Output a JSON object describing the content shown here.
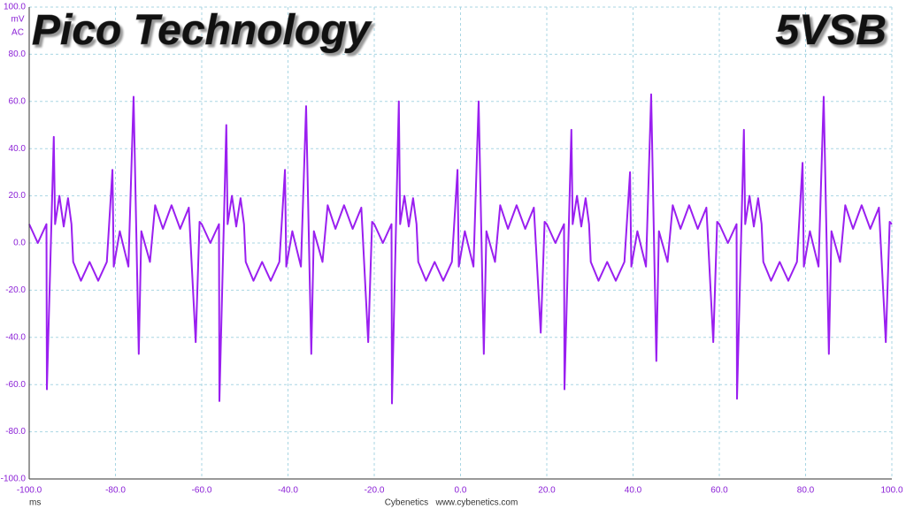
{
  "chart_data": {
    "type": "line",
    "title": "Pico Technology",
    "subtitle": "5VSB",
    "ylabel": "mV",
    "coupling": "AC",
    "xlabel": "ms",
    "footer": "Cybenetics   www.cybenetics.com",
    "color": "#9a1ff0",
    "grid": true,
    "xlim": [
      -100,
      100
    ],
    "xticks": [
      {
        "value": -100,
        "label": "-100.0"
      },
      {
        "value": -80,
        "label": "-80.0"
      },
      {
        "value": -60,
        "label": "-60.0"
      },
      {
        "value": -40,
        "label": "-40.0"
      },
      {
        "value": -20,
        "label": "-20.0"
      },
      {
        "value": 0,
        "label": "0.0"
      },
      {
        "value": 20,
        "label": "20.0"
      },
      {
        "value": 40,
        "label": "40.0"
      },
      {
        "value": 60,
        "label": "60.0"
      },
      {
        "value": 80,
        "label": "80.0"
      },
      {
        "value": 100,
        "label": "100.0"
      }
    ],
    "ylim": [
      -100,
      100
    ],
    "yticks": [
      {
        "value": -100,
        "label": "-100.0"
      },
      {
        "value": -80,
        "label": "-80.0"
      },
      {
        "value": -60,
        "label": "-60.0"
      },
      {
        "value": -40,
        "label": "-40.0"
      },
      {
        "value": -20,
        "label": "-20.0"
      },
      {
        "value": 0,
        "label": "0.0"
      },
      {
        "value": 20,
        "label": "20.0"
      },
      {
        "value": 40,
        "label": "40.0"
      },
      {
        "value": 60,
        "label": "60.0"
      },
      {
        "value": 80,
        "label": "80.0"
      },
      {
        "value": 100,
        "label": "100.0"
      }
    ],
    "x": [
      -100,
      -98,
      -96,
      -95.9,
      -94.3,
      -94,
      -93,
      -92,
      -91,
      -90.2,
      -89.8,
      -88,
      -86,
      -84,
      -82,
      -80.7,
      -80.4,
      -79,
      -77,
      -75.8,
      -74.6,
      -74,
      -72,
      -70.8,
      -69,
      -67,
      -65,
      -63,
      -61.4,
      -60.5,
      -60,
      -58,
      -56,
      -55.9,
      -54.3,
      -54,
      -53,
      -52,
      -51,
      -50.2,
      -49.8,
      -48,
      -46,
      -44,
      -42,
      -40.7,
      -40.4,
      -39,
      -37,
      -35.8,
      -34.6,
      -34,
      -32,
      -30.8,
      -29,
      -27,
      -25,
      -23,
      -21.4,
      -20.5,
      -20,
      -18,
      -16,
      -15.9,
      -14.3,
      -14,
      -13,
      -12,
      -11,
      -10.2,
      -9.8,
      -8,
      -6,
      -4,
      -2,
      -0.7,
      -0.4,
      1,
      3,
      4.2,
      5.4,
      6,
      8,
      9.2,
      11,
      13,
      15,
      17,
      18.6,
      19.5,
      20,
      22,
      24,
      24.1,
      25.7,
      26,
      27,
      28,
      29,
      29.8,
      30.2,
      32,
      34,
      36,
      38,
      39.3,
      39.6,
      41,
      43,
      44.2,
      45.4,
      46,
      48,
      49.2,
      51,
      53,
      55,
      57,
      58.6,
      59.5,
      60,
      62,
      64,
      64.1,
      65.7,
      66,
      67,
      68,
      69,
      69.8,
      70.2,
      72,
      74,
      76,
      78,
      79.3,
      79.6,
      81,
      83,
      84.2,
      85.4,
      86,
      88,
      89.2,
      91,
      93,
      95,
      97,
      98.6,
      99.5,
      100
    ],
    "values": [
      8,
      0,
      8,
      -62,
      45,
      8,
      20,
      7,
      19,
      8,
      -8,
      -16,
      -8,
      -16,
      -8,
      31,
      -10,
      5,
      -10,
      62,
      -47,
      5,
      -8,
      16,
      6,
      16,
      6,
      15,
      -42,
      9,
      8,
      0,
      8,
      -67,
      50,
      8,
      20,
      7,
      19,
      8,
      -8,
      -16,
      -8,
      -16,
      -8,
      31,
      -10,
      5,
      -10,
      58,
      -47,
      5,
      -8,
      16,
      6,
      16,
      6,
      15,
      -42,
      9,
      8,
      0,
      8,
      -68,
      60,
      8,
      20,
      7,
      19,
      8,
      -8,
      -16,
      -8,
      -16,
      -8,
      31,
      -10,
      5,
      -10,
      60,
      -47,
      5,
      -8,
      16,
      6,
      16,
      6,
      15,
      -38,
      9,
      8,
      0,
      8,
      -62,
      48,
      8,
      20,
      7,
      19,
      8,
      -8,
      -16,
      -8,
      -16,
      -8,
      30,
      -10,
      5,
      -10,
      63,
      -50,
      5,
      -8,
      16,
      6,
      16,
      6,
      15,
      -42,
      9,
      8,
      0,
      8,
      -66,
      48,
      8,
      20,
      7,
      19,
      8,
      -8,
      -16,
      -8,
      -16,
      -8,
      34,
      -10,
      5,
      -10,
      62,
      -47,
      5,
      -8,
      16,
      6,
      16,
      6,
      15,
      -42,
      9,
      8
    ]
  }
}
